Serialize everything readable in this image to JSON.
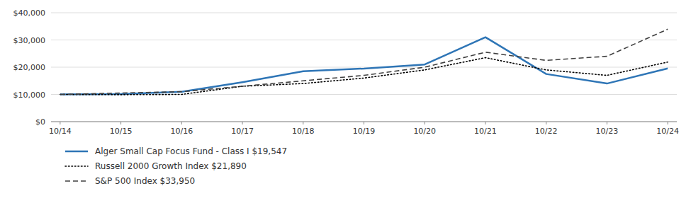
{
  "chart_data": {
    "type": "line",
    "categories": [
      "10/14",
      "10/15",
      "10/16",
      "10/17",
      "10/18",
      "10/19",
      "10/20",
      "10/21",
      "10/22",
      "10/23",
      "10/24"
    ],
    "series": [
      {
        "name": "Alger Small Cap Focus Fund - Class I $19,547",
        "color": "#2E75B6",
        "line_style": "solid",
        "values": [
          10000,
          10100,
          11000,
          14500,
          18500,
          19500,
          21000,
          31000,
          17500,
          14000,
          19547
        ]
      },
      {
        "name": "Russell 2000 Growth Index $21,890",
        "color": "#000000",
        "line_style": "dotted",
        "values": [
          10000,
          9900,
          10000,
          13000,
          14000,
          16000,
          19000,
          23500,
          19000,
          17000,
          21890
        ]
      },
      {
        "name": "S&P 500 Index $33,950",
        "color": "#404040",
        "line_style": "dashed",
        "values": [
          10000,
          10500,
          11000,
          13000,
          15000,
          17000,
          20000,
          25500,
          22500,
          24000,
          33950
        ]
      }
    ],
    "ylim": [
      0,
      40000
    ],
    "yticks": [
      {
        "value": 0,
        "label": "$0"
      },
      {
        "value": 10000,
        "label": "$10,000"
      },
      {
        "value": 20000,
        "label": "$20,000"
      },
      {
        "value": 30000,
        "label": "$30,000"
      },
      {
        "value": 40000,
        "label": "$40,000"
      }
    ],
    "grid": true,
    "legend": "bottom left"
  }
}
